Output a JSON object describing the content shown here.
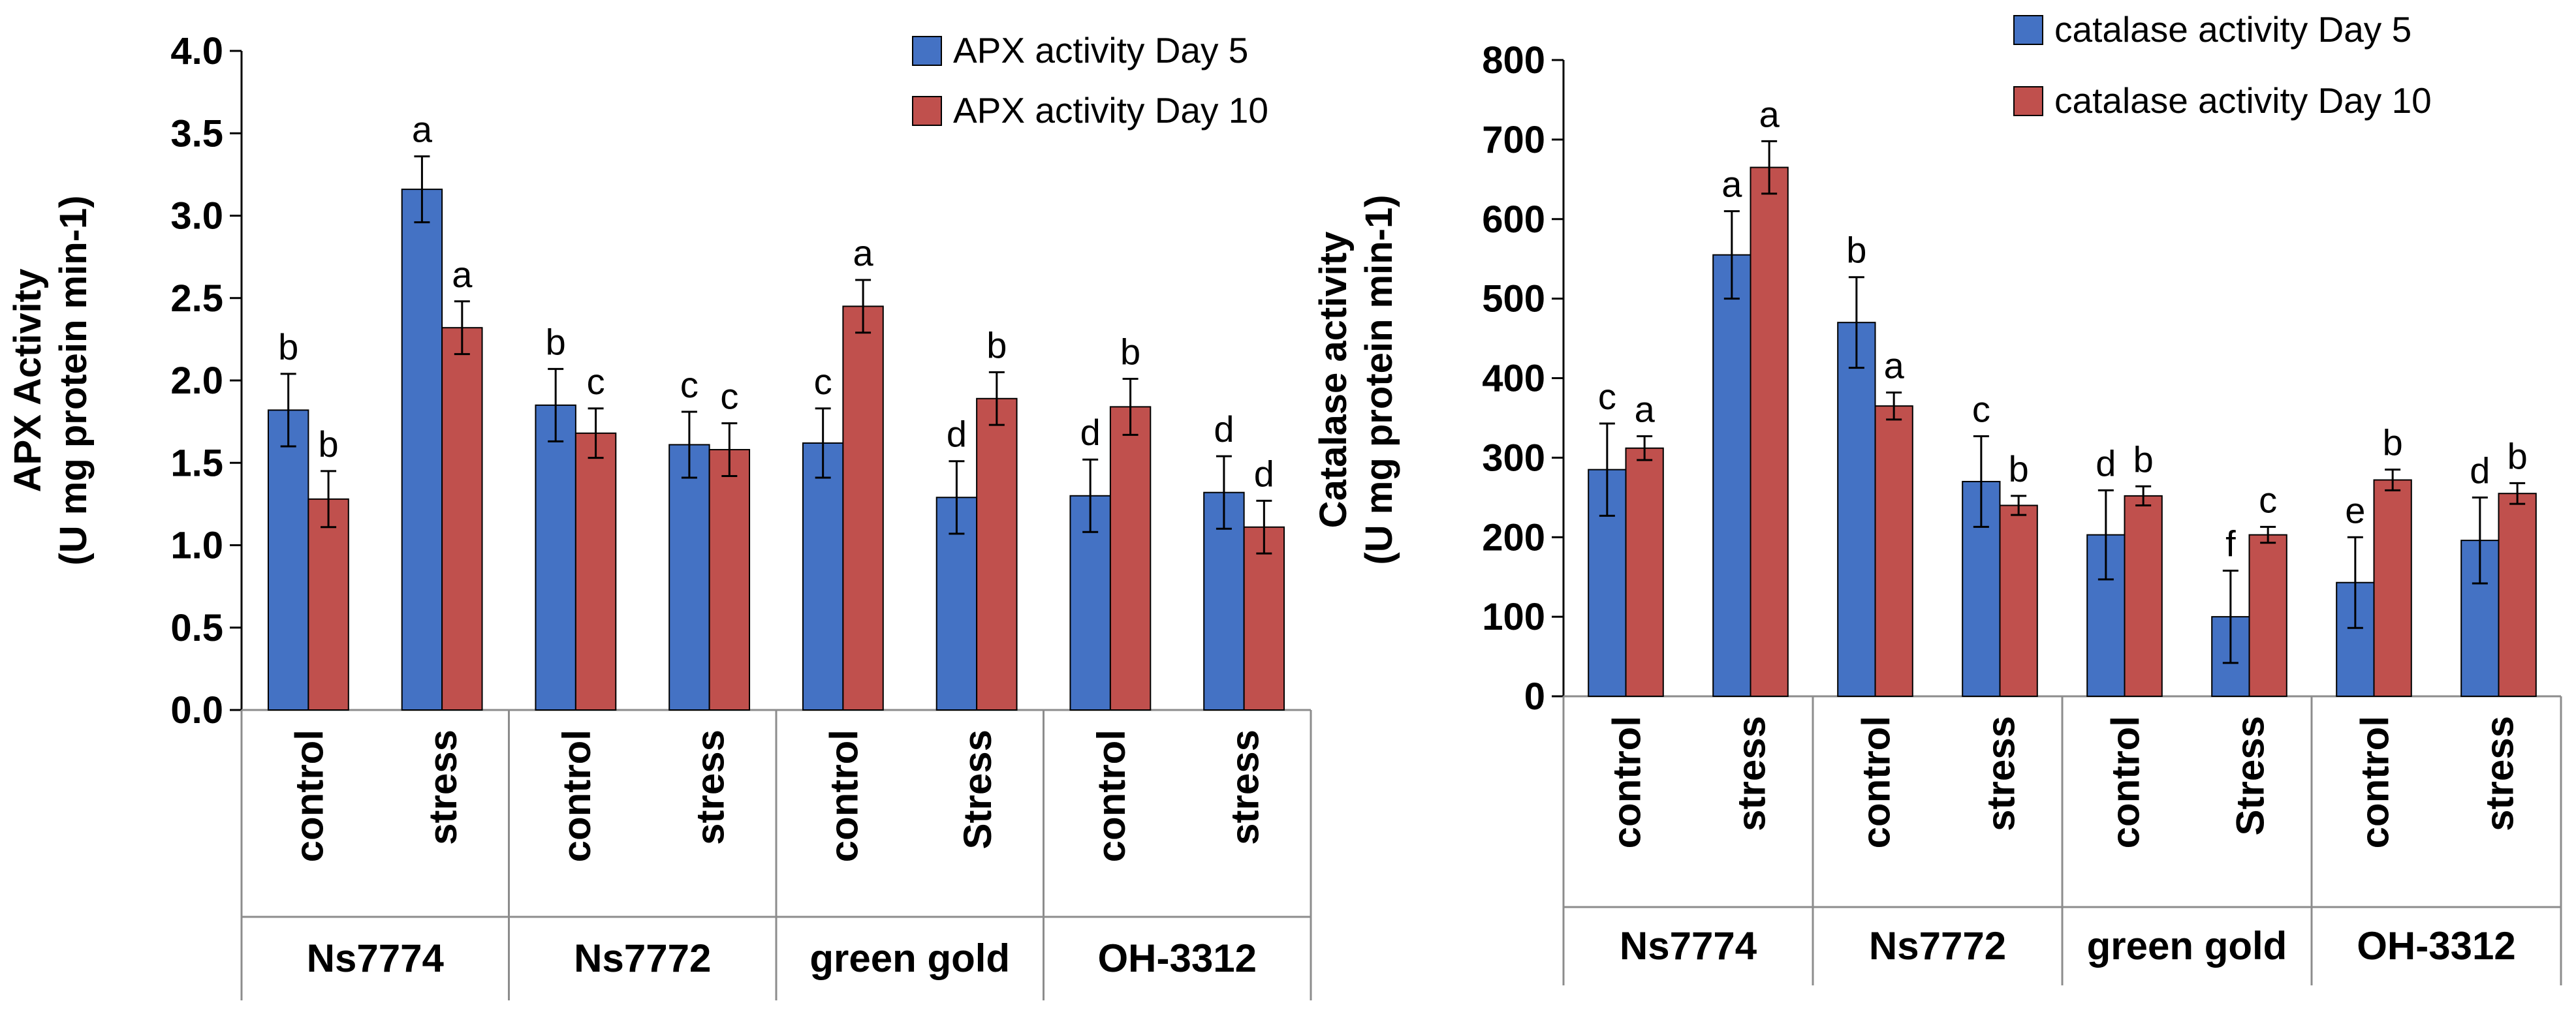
{
  "colors": {
    "day5": "#4472C4",
    "day10": "#C0504D",
    "axis": "#000000",
    "divider": "#8c8c8c"
  },
  "chart_data": [
    {
      "type": "bar",
      "ylabel_line1": "APX Activity",
      "ylabel_line2": "(U mg protein min-1)",
      "ylim": [
        0,
        4
      ],
      "yticks": [
        "0.0",
        "0.5",
        "1.0",
        "1.5",
        "2.0",
        "2.5",
        "3.0",
        "3.5",
        "4.0"
      ],
      "categories": [
        "control",
        "stress",
        "control",
        "stress",
        "control",
        "Stress",
        "control",
        "stress"
      ],
      "groups": [
        "Ns7774",
        "Ns7772",
        "green gold",
        "OH-3312"
      ],
      "series": [
        {
          "name": "APX activity Day 5",
          "values": [
            1.82,
            3.16,
            1.85,
            1.61,
            1.62,
            1.29,
            1.3,
            1.32
          ],
          "errors": [
            0.22,
            0.2,
            0.22,
            0.2,
            0.21,
            0.22,
            0.22,
            0.22
          ],
          "labels": [
            "b",
            "a",
            "b",
            "c",
            "c",
            "d",
            "d",
            "d"
          ]
        },
        {
          "name": "APX activity Day 10",
          "values": [
            1.28,
            2.32,
            1.68,
            1.58,
            2.45,
            1.89,
            1.84,
            1.11
          ],
          "errors": [
            0.17,
            0.16,
            0.15,
            0.16,
            0.16,
            0.16,
            0.17,
            0.16
          ],
          "labels": [
            "b",
            "a",
            "c",
            "c",
            "a",
            "b",
            "b",
            "d"
          ]
        }
      ]
    },
    {
      "type": "bar",
      "ylabel_line1": "Catalase activity",
      "ylabel_line2": "(U mg protein min-1)",
      "ylim": [
        0,
        800
      ],
      "yticks": [
        "0",
        "100",
        "200",
        "300",
        "400",
        "500",
        "600",
        "700",
        "800"
      ],
      "categories": [
        "control",
        "stress",
        "control",
        "stress",
        "control",
        "Stress",
        "control",
        "stress"
      ],
      "groups": [
        "Ns7774",
        "Ns7772",
        "green gold",
        "OH-3312"
      ],
      "series": [
        {
          "name": "catalase activity Day 5",
          "values": [
            285,
            555,
            470,
            270,
            203,
            100,
            143,
            196
          ],
          "errors": [
            58,
            55,
            57,
            57,
            56,
            58,
            57,
            54
          ],
          "labels": [
            "c",
            "a",
            "b",
            "c",
            "d",
            "f",
            "e",
            "d"
          ]
        },
        {
          "name": "catalase activity Day 10",
          "values": [
            312,
            665,
            365,
            240,
            252,
            203,
            272,
            255
          ],
          "errors": [
            15,
            33,
            17,
            12,
            12,
            10,
            13,
            13
          ],
          "labels": [
            "a",
            "a",
            "a",
            "b",
            "b",
            "c",
            "b",
            "b"
          ]
        }
      ]
    }
  ]
}
